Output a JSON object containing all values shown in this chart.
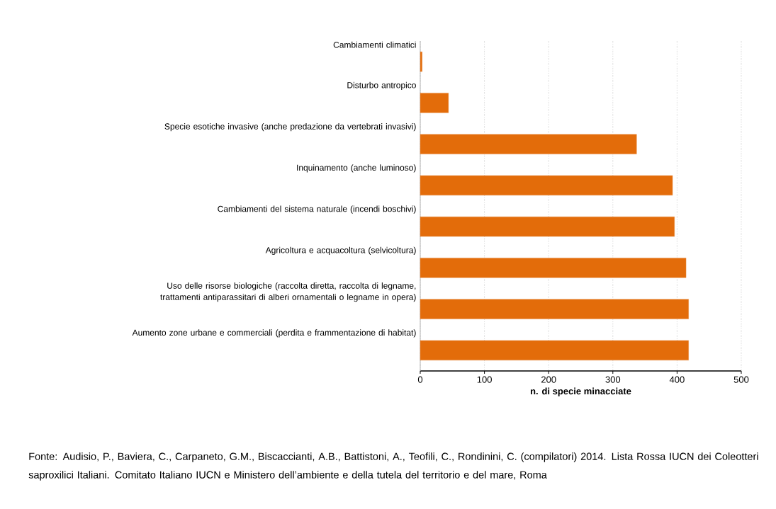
{
  "chart_data": {
    "type": "bar",
    "orientation": "horizontal",
    "categories": [
      "Cambiamenti climatici",
      "Disturbo antropico",
      "Specie esotiche invasive (anche predazione da vertebrati invasivi)",
      "Inquinamento (anche luminoso)",
      "Cambiamenti del sistema naturale (incendi boschivi)",
      "Agricoltura e acquacoltura (selvicoltura)",
      "Uso delle risorse biologiche (raccolta diretta, raccolta di legname, trattamenti antiparassitari di alberi ornamentali o legname in opera)",
      "Aumento zone urbane e commerciali (perdita e frammentazione di habitat)"
    ],
    "values": [
      3,
      44,
      337,
      393,
      396,
      414,
      418,
      418
    ],
    "color": "#e36c0a",
    "xlim": [
      0,
      500
    ],
    "xticks": [
      0,
      100,
      200,
      300,
      400,
      500
    ],
    "xlabel": "n. di specie minacciate",
    "grid": "x",
    "annotations": [
      "Fonte: Audisio, P., Baviera, C., Carpaneto, G.M., Biscaccianti, A.B., Battistoni, A., Teofili, C., Rondinini, C. (compilatori) 2014. Lista Rossa IUCN dei Coleotteri saproxilici Italiani. Comitato Italiano IUCN e Ministero dell’ambiente e della tutela del territorio e del mare, Roma"
    ]
  }
}
